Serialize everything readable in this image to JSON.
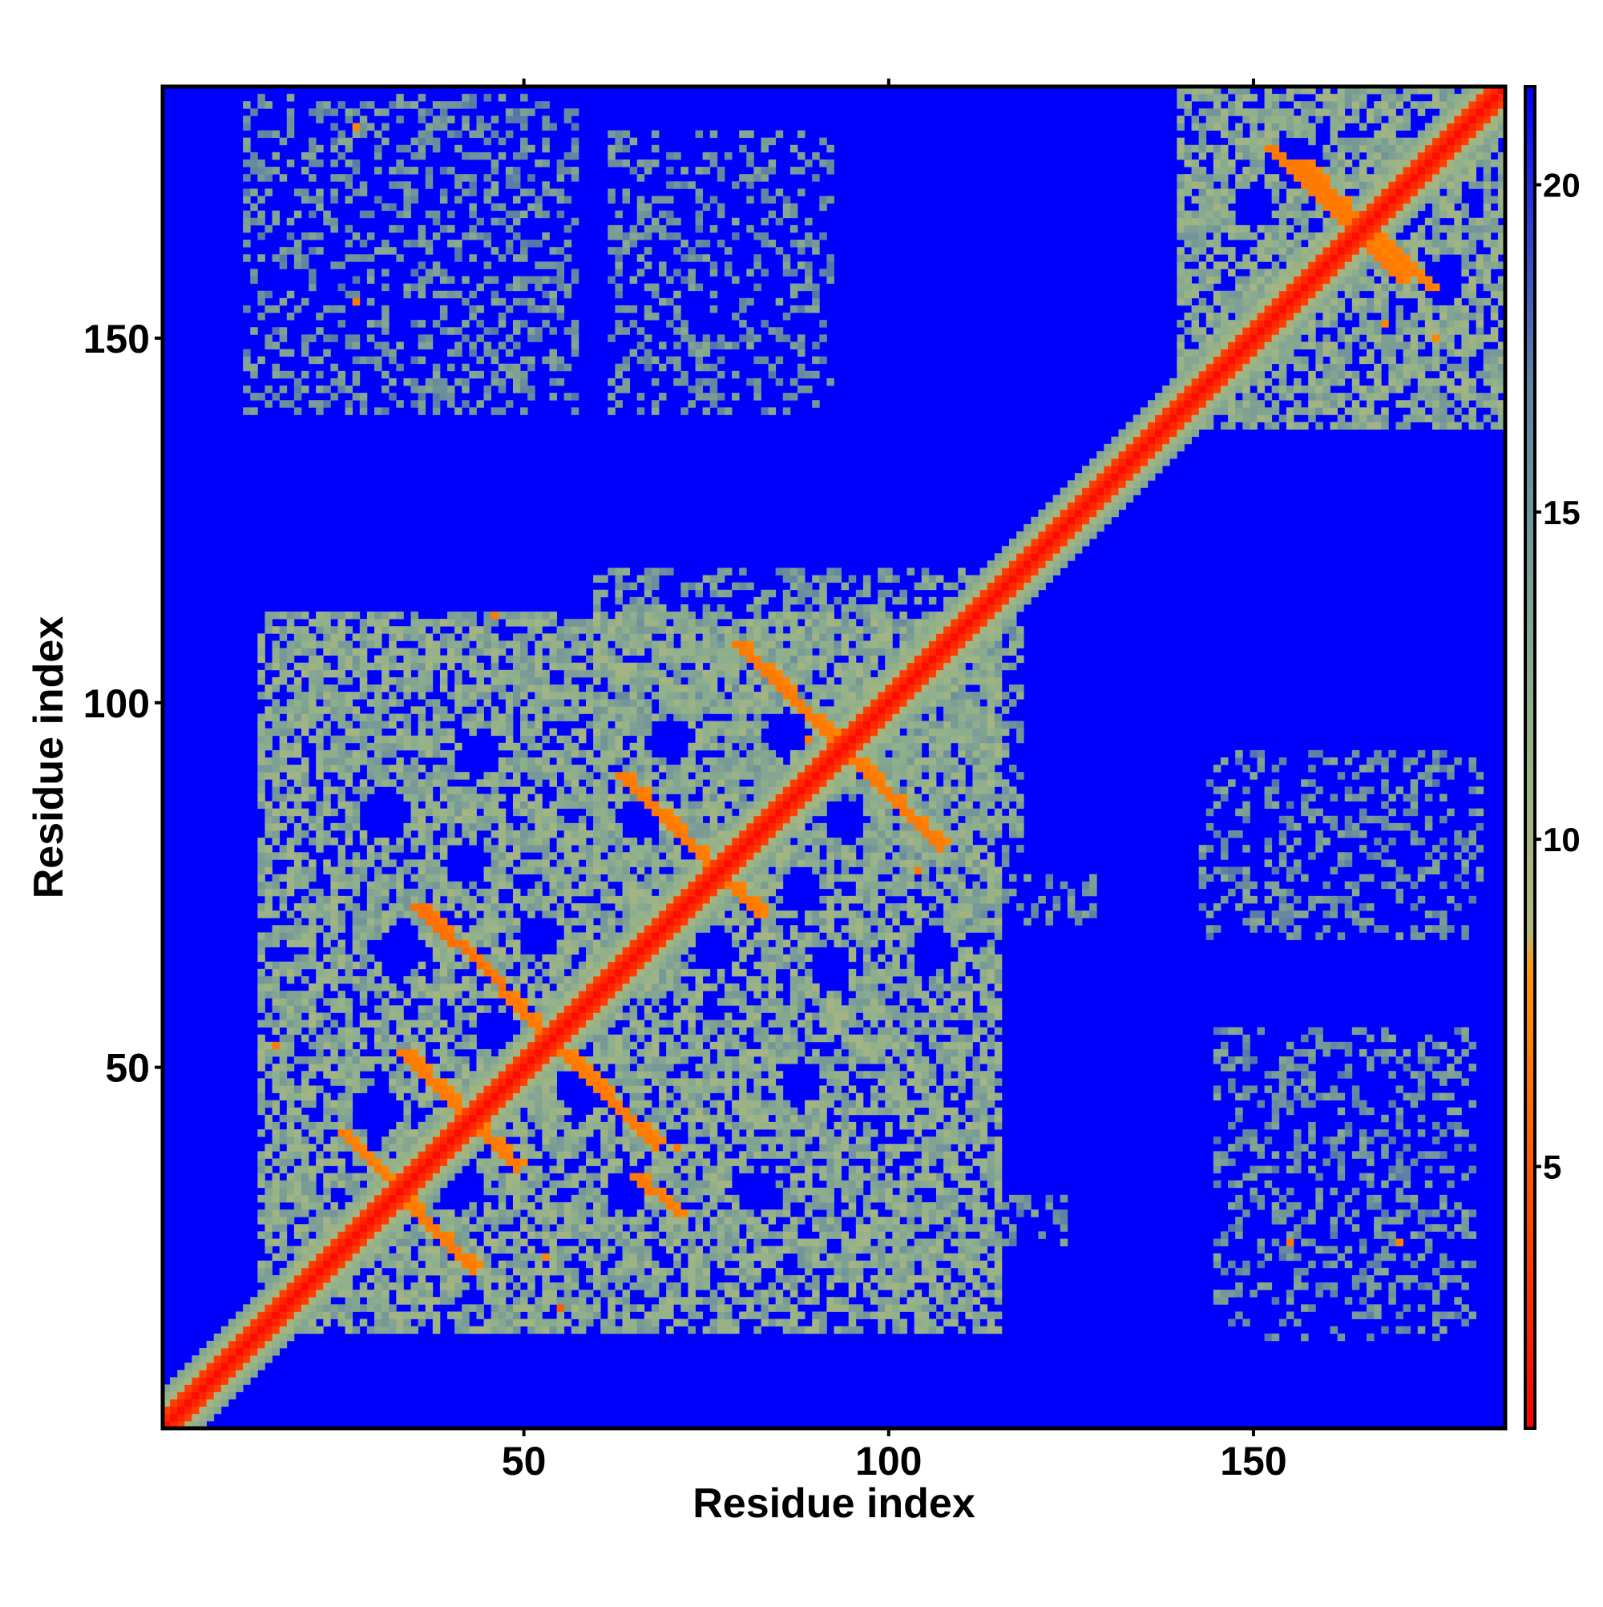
{
  "chart_data": {
    "type": "heatmap",
    "title": "",
    "xlabel": "Residue index",
    "ylabel": "Residue index",
    "xlim": [
      1,
      184
    ],
    "ylim": [
      1,
      184
    ],
    "x_ticks": [
      50,
      100,
      150
    ],
    "y_ticks": [
      50,
      100,
      150
    ],
    "colorbar": {
      "ticks": [
        5,
        10,
        15,
        20
      ],
      "range": [
        1,
        21.5
      ],
      "stops": [
        {
          "value": 1,
          "color": "#ff0000"
        },
        {
          "value": 4,
          "color": "#ff4500"
        },
        {
          "value": 8,
          "color": "#ff9900"
        },
        {
          "value": 8.6,
          "color": "#b5b87a"
        },
        {
          "value": 12,
          "color": "#8fb08c"
        },
        {
          "value": 17,
          "color": "#5f82a3"
        },
        {
          "value": 21.5,
          "color": "#0000ff"
        }
      ]
    },
    "background_value": 21.5,
    "diagonal": {
      "width_residues": 2.2,
      "value": 1.5
    },
    "lines": [
      {
        "from": [
          25,
          41
        ],
        "to": [
          43,
          22
        ],
        "value": 6.5
      },
      {
        "from": [
          33,
          52
        ],
        "to": [
          49,
          36
        ],
        "value": 6.5
      },
      {
        "from": [
          35,
          72
        ],
        "to": [
          47,
          61
        ],
        "value": 6.0
      },
      {
        "from": [
          47,
          60
        ],
        "to": [
          68,
          39
        ],
        "value": 6.5
      },
      {
        "from": [
          63,
          90
        ],
        "to": [
          82,
          71
        ],
        "value": 6.5
      },
      {
        "from": [
          79,
          108
        ],
        "to": [
          107,
          80
        ],
        "value": 6.5
      },
      {
        "from": [
          65,
          35
        ],
        "to": [
          71,
          30
        ],
        "value": 6.5
      },
      {
        "from": [
          156,
          174
        ],
        "to": [
          174,
          157
        ],
        "value": 6.5
      },
      {
        "from": [
          152,
          176
        ],
        "to": [
          170,
          158
        ],
        "value": 6.5
      }
    ],
    "contact_regions": [
      {
        "x": [
          14,
          115
        ],
        "y": [
          14,
          112
        ],
        "density": 0.7,
        "value": 12.5
      },
      {
        "x": [
          60,
          118
        ],
        "y": [
          78,
          118
        ],
        "density": 0.45,
        "value": 14
      },
      {
        "x": [
          108,
          124
        ],
        "y": [
          26,
          32
        ],
        "density": 0.4,
        "value": 15
      },
      {
        "x": [
          108,
          128
        ],
        "y": [
          70,
          76
        ],
        "density": 0.35,
        "value": 15
      },
      {
        "x": [
          140,
          184
        ],
        "y": [
          138,
          184
        ],
        "density": 0.72,
        "value": 12.5
      },
      {
        "x": [
          12,
          57
        ],
        "y": [
          140,
          183
        ],
        "density": 0.33,
        "value": 15
      },
      {
        "x": [
          62,
          92
        ],
        "y": [
          140,
          178
        ],
        "density": 0.3,
        "value": 15
      },
      {
        "x": [
          143,
          181
        ],
        "y": [
          68,
          93
        ],
        "density": 0.3,
        "value": 15
      },
      {
        "x": [
          145,
          180
        ],
        "y": [
          13,
          55
        ],
        "density": 0.3,
        "value": 15
      }
    ],
    "blue_holes": [
      {
        "c": [
          30,
          44
        ],
        "r": 3.5
      },
      {
        "c": [
          41,
          34
        ],
        "r": 3.5
      },
      {
        "c": [
          47,
          46
        ],
        "r": 3.0
      },
      {
        "c": [
          58,
          47
        ],
        "r": 3.5
      },
      {
        "c": [
          64,
          33
        ],
        "r": 3.0
      },
      {
        "c": [
          82,
          33
        ],
        "r": 3.0
      },
      {
        "c": [
          88,
          48
        ],
        "r": 3.0
      },
      {
        "c": [
          33,
          66
        ],
        "r": 3.5
      },
      {
        "c": [
          46,
          55
        ],
        "r": 3.0
      },
      {
        "c": [
          31,
          85
        ],
        "r": 3.5
      },
      {
        "c": [
          42,
          78
        ],
        "r": 3.0
      },
      {
        "c": [
          44,
          93
        ],
        "r": 3.0
      },
      {
        "c": [
          52,
          68
        ],
        "r": 3.0
      },
      {
        "c": [
          62,
          60
        ],
        "r": 3.0
      },
      {
        "c": [
          66,
          84
        ],
        "r": 3.0
      },
      {
        "c": [
          70,
          95
        ],
        "r": 3.0
      },
      {
        "c": [
          76,
          66
        ],
        "r": 3.0
      },
      {
        "c": [
          88,
          74
        ],
        "r": 3.0
      },
      {
        "c": [
          94,
          84
        ],
        "r": 3.0
      },
      {
        "c": [
          92,
          64
        ],
        "r": 3.0
      },
      {
        "c": [
          86,
          96
        ],
        "r": 3.0
      },
      {
        "c": [
          106,
          66
        ],
        "r": 3.0
      },
      {
        "c": [
          156,
          174
        ],
        "r": 3.5
      },
      {
        "c": [
          171,
          168
        ],
        "r": 3.5
      },
      {
        "c": [
          160,
          158
        ],
        "r": 3.0
      },
      {
        "c": [
          176,
          158
        ],
        "r": 3.0
      },
      {
        "c": [
          174,
          178
        ],
        "r": 3.0
      },
      {
        "c": [
          150,
          168
        ],
        "r": 3.0
      }
    ],
    "hot_spots": [
      {
        "c": [
          27,
          179
        ],
        "value": 7
      },
      {
        "c": [
          27,
          155
        ],
        "value": 6.5
      },
      {
        "c": [
          71,
          39
        ],
        "value": 6.5
      },
      {
        "c": [
          55,
          17
        ],
        "value": 5
      },
      {
        "c": [
          53,
          24
        ],
        "value": 7
      },
      {
        "c": [
          155,
          26
        ],
        "value": 6.5
      },
      {
        "c": [
          170,
          26
        ],
        "value": 7
      },
      {
        "c": [
          168,
          152
        ],
        "value": 7
      },
      {
        "c": [
          175,
          150
        ],
        "value": 7
      },
      {
        "c": [
          89,
          95
        ],
        "value": 6.5
      },
      {
        "c": [
          104,
          77
        ],
        "value": 6.5
      },
      {
        "c": [
          16,
          53
        ],
        "value": 6.5
      },
      {
        "c": [
          46,
          112
        ],
        "value": 6.5
      }
    ]
  }
}
